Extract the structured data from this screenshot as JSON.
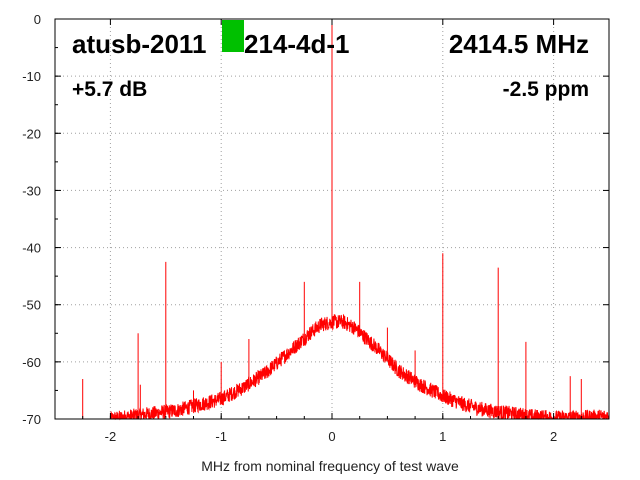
{
  "chart_data": {
    "type": "line",
    "title": "",
    "xlabel": "MHz from nominal frequency of test wave",
    "ylabel": "",
    "xlim": [
      -2.5,
      2.5
    ],
    "ylim": [
      -70,
      0
    ],
    "x_ticks": [
      -2,
      -1,
      0,
      1,
      2
    ],
    "x_tick_labels": [
      "-2",
      "-1",
      "0",
      "1",
      "2"
    ],
    "y_ticks": [
      0,
      -10,
      -20,
      -30,
      -40,
      -50,
      -60,
      -70
    ],
    "y_tick_labels": [
      "0",
      "-10",
      "-20",
      "-30",
      "-40",
      "-50",
      "-60",
      "-70"
    ],
    "grid": true,
    "series_color": "#ff0000",
    "marker_color": "#00c000",
    "annotations": {
      "device": "atusb-2011",
      "device_suffix": "214-4d-1",
      "frequency": "2414.5 MHz",
      "gain": "+5.7 dB",
      "ppm": "-2.5 ppm"
    },
    "noise_floor": [
      [
        -2.0,
        -70
      ],
      [
        -1.8,
        -69.5
      ],
      [
        -1.6,
        -69
      ],
      [
        -1.4,
        -68.5
      ],
      [
        -1.2,
        -67.5
      ],
      [
        -1.0,
        -66.5
      ],
      [
        -0.8,
        -64.5
      ],
      [
        -0.6,
        -62
      ],
      [
        -0.4,
        -58.5
      ],
      [
        -0.2,
        -55
      ],
      [
        -0.1,
        -53.5
      ],
      [
        0.0,
        -53
      ],
      [
        0.1,
        -53
      ],
      [
        0.2,
        -54
      ],
      [
        0.4,
        -57.5
      ],
      [
        0.6,
        -61.5
      ],
      [
        0.8,
        -64
      ],
      [
        1.0,
        -66
      ],
      [
        1.2,
        -67.5
      ],
      [
        1.4,
        -68.5
      ],
      [
        1.6,
        -69
      ],
      [
        1.8,
        -69.5
      ],
      [
        2.0,
        -69.8
      ],
      [
        2.2,
        -69.8
      ],
      [
        2.5,
        -69.5
      ]
    ],
    "spurs": [
      {
        "x": -2.25,
        "y": -63
      },
      {
        "x": -1.75,
        "y": -55
      },
      {
        "x": -1.73,
        "y": -64
      },
      {
        "x": -1.5,
        "y": -42.5
      },
      {
        "x": -1.25,
        "y": -65
      },
      {
        "x": -1.0,
        "y": -60
      },
      {
        "x": -0.75,
        "y": -56
      },
      {
        "x": -0.5,
        "y": -60
      },
      {
        "x": -0.25,
        "y": -46
      },
      {
        "x": 0.0,
        "y": 0
      },
      {
        "x": 0.25,
        "y": -46
      },
      {
        "x": 0.5,
        "y": -54
      },
      {
        "x": 0.75,
        "y": -58
      },
      {
        "x": 1.0,
        "y": -41
      },
      {
        "x": 1.5,
        "y": -43.5
      },
      {
        "x": 1.75,
        "y": -56.5
      },
      {
        "x": 2.15,
        "y": -62.5
      },
      {
        "x": 2.25,
        "y": -63
      }
    ]
  }
}
